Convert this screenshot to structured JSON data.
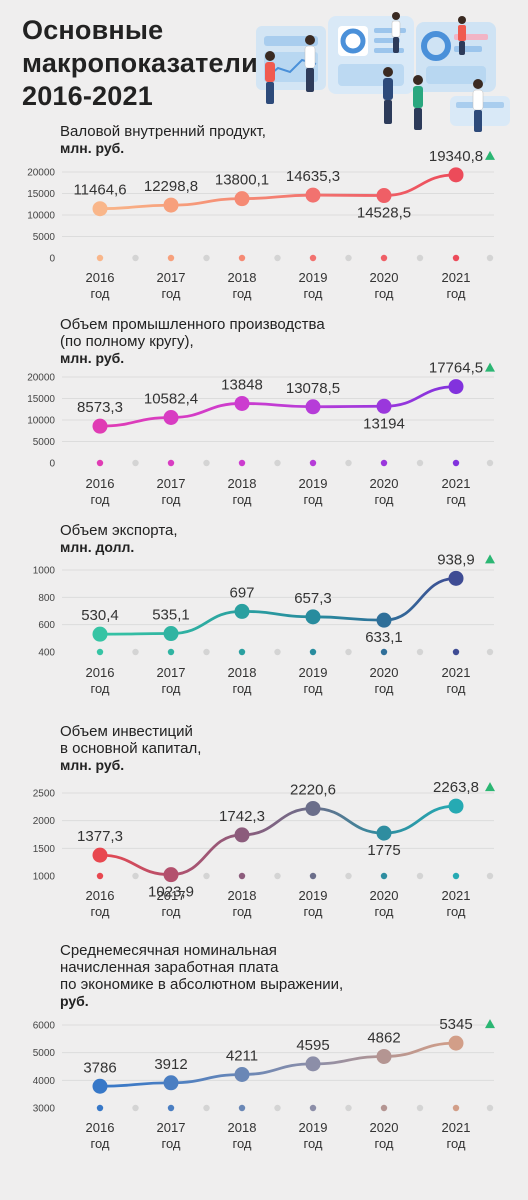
{
  "header": {
    "title_line1": "Основные",
    "title_line2": "макропоказатели",
    "title_line3": "2016-2021"
  },
  "colors": {
    "background": "#efeeee",
    "up_arrow": "#2bb673",
    "grid": "#dcdcdc"
  },
  "chart_data": [
    {
      "type": "line",
      "title_lines": [
        "Валовой внутренний продукт,"
      ],
      "unit": "млн. руб.",
      "categories": [
        "2016",
        "2017",
        "2018",
        "2019",
        "2020",
        "2021"
      ],
      "category_suffix": "год",
      "values": [
        11464.6,
        12298.8,
        13800.1,
        14635.3,
        14528.5,
        19340.8
      ],
      "value_labels": [
        "11464,6",
        "12298,8",
        "13800,1",
        "14635,3",
        "14528,5",
        "19340,8"
      ],
      "yticks": [
        "0",
        "5000",
        "10000",
        "15000",
        "20000"
      ],
      "ylim": [
        0,
        20000
      ],
      "colors": [
        "#f9b68a",
        "#f7a07c",
        "#f58a74",
        "#f2726f",
        "#ef5f66",
        "#ec4b5a"
      ],
      "trend": "up"
    },
    {
      "type": "line",
      "title_lines": [
        "Объем промышленного производства",
        "(по полному кругу),"
      ],
      "unit": "млн. руб.",
      "categories": [
        "2016",
        "2017",
        "2018",
        "2019",
        "2020",
        "2021"
      ],
      "category_suffix": "год",
      "values": [
        8573.3,
        10582.4,
        13848,
        13078.5,
        13194,
        17764.5
      ],
      "value_labels": [
        "8573,3",
        "10582,4",
        "13848",
        "13078,5",
        "13194",
        "17764,5"
      ],
      "yticks": [
        "0",
        "5000",
        "10000",
        "15000",
        "20000"
      ],
      "ylim": [
        0,
        20000
      ],
      "colors": [
        "#e03cb4",
        "#d83cc2",
        "#cc3ccf",
        "#b63cd8",
        "#9a37dc",
        "#8232dd"
      ],
      "trend": "up"
    },
    {
      "type": "line",
      "title_lines": [
        "Объем экспорта,"
      ],
      "unit": "млн. долл.",
      "categories": [
        "2016",
        "2017",
        "2018",
        "2019",
        "2020",
        "2021"
      ],
      "category_suffix": "год",
      "values": [
        530.4,
        535.1,
        697,
        657.3,
        633.1,
        938.9
      ],
      "value_labels": [
        "530,4",
        "535,1",
        "697",
        "657,3",
        "633,1",
        "938,9"
      ],
      "yticks": [
        "400",
        "600",
        "800",
        "1000"
      ],
      "ylim": [
        400,
        1000
      ],
      "colors": [
        "#36c4a4",
        "#30b4a2",
        "#2aa0a0",
        "#288c9e",
        "#2f6f99",
        "#3f4c94"
      ],
      "trend": "up"
    },
    {
      "type": "line",
      "title_lines": [
        "Объем инвестиций",
        "в основной капитал,"
      ],
      "unit": "млн. руб.",
      "categories": [
        "2016",
        "2017",
        "2018",
        "2019",
        "2020",
        "2021"
      ],
      "category_suffix": "год",
      "values": [
        1377.3,
        1023.9,
        1742.3,
        2220.6,
        1775,
        2263.8
      ],
      "value_labels": [
        "1377,3",
        "1023,9",
        "1742,3",
        "2220,6",
        "1775",
        "2263,8"
      ],
      "yticks": [
        "1000",
        "1500",
        "2000",
        "2500"
      ],
      "ylim": [
        1000,
        2500
      ],
      "colors": [
        "#e8474f",
        "#b3506d",
        "#8c5c7c",
        "#6b6e8a",
        "#2e8da0",
        "#26aab3"
      ],
      "trend": "up"
    },
    {
      "type": "line",
      "title_lines": [
        "Среднемесячная номинальная",
        "начисленная заработная плата",
        "по экономике в абсолютном выражении,"
      ],
      "unit": "руб.",
      "categories": [
        "2016",
        "2017",
        "2018",
        "2019",
        "2020",
        "2021"
      ],
      "category_suffix": "год",
      "values": [
        3786,
        3912,
        4211,
        4595,
        4862,
        5345
      ],
      "value_labels": [
        "3786",
        "3912",
        "4211",
        "4595",
        "4862",
        "5345"
      ],
      "yticks": [
        "3000",
        "4000",
        "5000",
        "6000"
      ],
      "ylim": [
        3000,
        6000
      ],
      "colors": [
        "#3778c8",
        "#4a7ec2",
        "#6a87b6",
        "#8c8ea8",
        "#b49592",
        "#d29e88"
      ],
      "trend": "up"
    }
  ]
}
